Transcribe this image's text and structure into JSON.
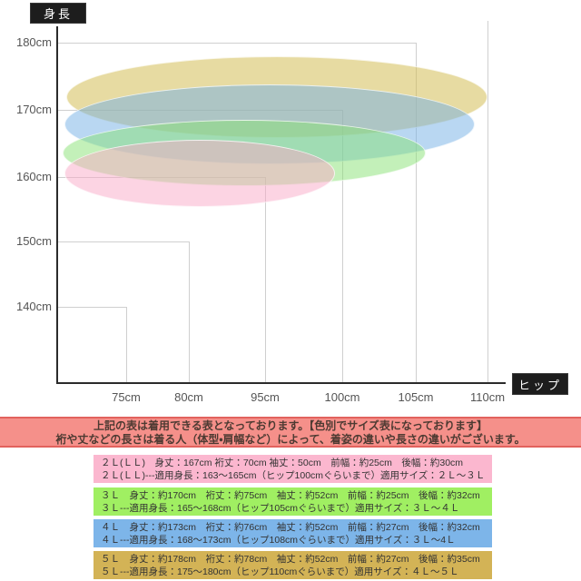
{
  "chart_data": {
    "type": "area",
    "title": "",
    "x_axis": {
      "label": "ヒップ",
      "ticks": [
        "75cm",
        "80cm",
        "95cm",
        "100cm",
        "105cm",
        "110cm"
      ]
    },
    "y_axis": {
      "label": "身長",
      "ticks": [
        "180cm",
        "170cm",
        "160cm",
        "150cm",
        "140cm"
      ]
    },
    "grid": true,
    "legend": false,
    "regions": [
      {
        "size": "2L(LL)",
        "color_name": "pink",
        "fill_overlay": "rgba(250,170,200,0.5)",
        "swatch": "#FBB7CF",
        "height_range_cm": [
          163,
          165
        ],
        "hip_max_cm": 100,
        "applicable_sizes": "２Ｌ～３Ｌ"
      },
      {
        "size": "3L",
        "color_name": "green",
        "fill_overlay": "rgba(135,225,115,0.5)",
        "swatch": "#A0EF62",
        "height_range_cm": [
          165,
          168
        ],
        "hip_max_cm": 105,
        "applicable_sizes": "３Ｌ～４Ｌ"
      },
      {
        "size": "4L",
        "color_name": "blue",
        "fill_overlay": "rgba(115,175,230,0.5)",
        "swatch": "#7DB5E9",
        "height_range_cm": [
          168,
          173
        ],
        "hip_max_cm": 108,
        "applicable_sizes": "３Ｌ～4Ｌ"
      },
      {
        "size": "5L",
        "color_name": "khaki",
        "fill_overlay": "rgba(212,190,85,0.55)",
        "swatch": "#D3B356",
        "height_range_cm": [
          175,
          180
        ],
        "hip_max_cm": 110,
        "applicable_sizes": "４Ｌ～５Ｌ"
      }
    ]
  },
  "notice": {
    "line1": "上記の表は着用できる表となっております。【色別でサイズ表になっております】",
    "line2": "裄や丈などの長さは着る人（体型・肩幅など）によって、着姿の違いや長さの違いがございます。"
  },
  "size_table": {
    "rows": [
      {
        "bg": "#FBB7CF",
        "line1": "２Ｌ(ＬＬ)　身丈：167cm 裄丈：70cm 袖丈：50cm　前幅：約25cm　後幅：約30cm",
        "line2": "２Ｌ(ＬＬ)---適用身長：163～165cm（ヒップ100cmぐらいまで）適用サイズ：２Ｌ～３Ｌ"
      },
      {
        "bg": "#A0EF62",
        "line1": "３Ｌ　身丈：約170cm　裄丈：約75cm　袖丈：約52cm　前幅：約25cm　後幅：約32cm",
        "line2": "３Ｌ---適用身長：165～168cm（ヒップ105cmぐらいまで）適用サイズ：３Ｌ～４Ｌ"
      },
      {
        "bg": "#7DB5E9",
        "line1": "４Ｌ　身丈：約173cm　裄丈：約76cm　袖丈：約52cm　前幅：約27cm　後幅：約32cm",
        "line2": "４Ｌ---適用身長：168～173cm（ヒップ108cmぐらいまで）適用サイズ：３Ｌ～4Ｌ"
      },
      {
        "bg": "#D3B356",
        "line1": "５Ｌ　身丈：約178cm　裄丈：約78cm　袖丈：約52cm　前幅：約27cm　後幅：約35cm",
        "line2": "５Ｌ---適用身長：175～180cm（ヒップ110cmぐらいまで）適用サイズ：４Ｌ～５Ｌ"
      }
    ]
  },
  "colors": {
    "axis": "#2b2b2b",
    "grid": "#cfcfcf",
    "badge_bg": "#1d1d1d",
    "badge_text": "#ffffff",
    "notice_bg": "#F5908A",
    "notice_border": "#E2625D"
  }
}
